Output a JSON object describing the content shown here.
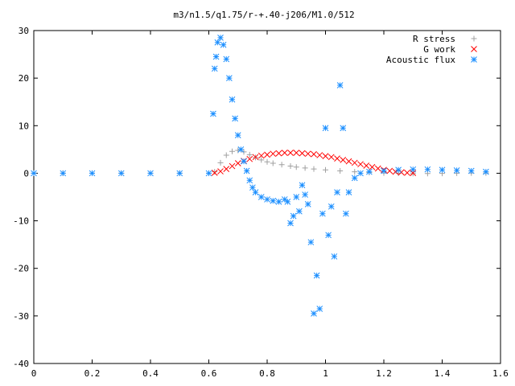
{
  "chart_data": {
    "type": "scatter",
    "title": "m3/n1.5/q1.75/r-+.40-j206/M1.0/512",
    "xlabel": "",
    "ylabel": "",
    "xlim": [
      0,
      1.6
    ],
    "ylim": [
      -40,
      30
    ],
    "xticks": [
      0,
      0.2,
      0.4,
      0.6,
      0.8,
      1,
      1.2,
      1.4,
      1.6
    ],
    "xtick_labels": [
      "0",
      "0.2",
      "0.4",
      "0.6",
      "0.8",
      "1",
      "1.2",
      "1.4",
      "1.6"
    ],
    "yticks": [
      -40,
      -30,
      -20,
      -10,
      0,
      10,
      20,
      30
    ],
    "ytick_labels": [
      "-40",
      "-30",
      "-20",
      "-10",
      "0",
      "10",
      "20",
      "30"
    ],
    "grid": false,
    "legend_position": "top-right",
    "series": [
      {
        "name": "R stress",
        "color": "#a0a0a0",
        "marker": "plus",
        "x": [
          0.0,
          0.1,
          0.2,
          0.3,
          0.4,
          0.5,
          0.6,
          0.62,
          0.64,
          0.66,
          0.68,
          0.7,
          0.72,
          0.74,
          0.76,
          0.78,
          0.8,
          0.82,
          0.85,
          0.88,
          0.9,
          0.93,
          0.96,
          1.0,
          1.05,
          1.1,
          1.15,
          1.2,
          1.25,
          1.3,
          1.35,
          1.4,
          1.45,
          1.5,
          1.55
        ],
        "y": [
          0,
          0,
          0,
          0,
          0,
          0,
          0,
          0.3,
          2.2,
          3.8,
          4.6,
          4.8,
          4.5,
          3.9,
          3.3,
          2.8,
          2.4,
          2.1,
          1.8,
          1.5,
          1.3,
          1.1,
          0.9,
          0.7,
          0.5,
          0.3,
          0.15,
          0.05,
          0.0,
          -0.05,
          -0.05,
          -0.03,
          0.0,
          0.05,
          0.05
        ]
      },
      {
        "name": "G work",
        "color": "#ff0000",
        "marker": "cross",
        "x": [
          0.62,
          0.64,
          0.66,
          0.68,
          0.7,
          0.72,
          0.74,
          0.76,
          0.78,
          0.8,
          0.82,
          0.84,
          0.86,
          0.88,
          0.9,
          0.92,
          0.94,
          0.96,
          0.98,
          1.0,
          1.02,
          1.04,
          1.06,
          1.08,
          1.1,
          1.12,
          1.14,
          1.16,
          1.18,
          1.2,
          1.22,
          1.24,
          1.26,
          1.28,
          1.3
        ],
        "y": [
          0.1,
          0.4,
          0.9,
          1.5,
          2.1,
          2.6,
          3.0,
          3.4,
          3.7,
          3.9,
          4.1,
          4.2,
          4.3,
          4.3,
          4.3,
          4.2,
          4.1,
          4.0,
          3.8,
          3.6,
          3.4,
          3.1,
          2.8,
          2.5,
          2.2,
          1.9,
          1.6,
          1.3,
          1.0,
          0.7,
          0.5,
          0.3,
          0.2,
          0.1,
          0.05
        ]
      },
      {
        "name": "Acoustic flux",
        "color": "#1e90ff",
        "marker": "star",
        "x": [
          0.0,
          0.1,
          0.2,
          0.3,
          0.4,
          0.5,
          0.6,
          0.615,
          0.62,
          0.625,
          0.63,
          0.64,
          0.65,
          0.66,
          0.67,
          0.68,
          0.69,
          0.7,
          0.71,
          0.72,
          0.73,
          0.74,
          0.75,
          0.76,
          0.78,
          0.8,
          0.82,
          0.84,
          0.86,
          0.87,
          0.88,
          0.89,
          0.9,
          0.91,
          0.92,
          0.93,
          0.94,
          0.95,
          0.96,
          0.97,
          0.98,
          0.99,
          1.0,
          1.01,
          1.02,
          1.03,
          1.04,
          1.05,
          1.06,
          1.07,
          1.08,
          1.1,
          1.12,
          1.15,
          1.2,
          1.25,
          1.3,
          1.35,
          1.4,
          1.45,
          1.5,
          1.55
        ],
        "y": [
          0,
          0,
          0,
          0,
          0,
          0,
          0,
          12.5,
          22.0,
          24.5,
          27.5,
          28.5,
          27.0,
          24.0,
          20.0,
          15.5,
          11.5,
          8.0,
          5.0,
          2.5,
          0.5,
          -1.5,
          -3.0,
          -4.0,
          -5.0,
          -5.5,
          -5.8,
          -6.0,
          -5.5,
          -6.0,
          -10.5,
          -9.0,
          -5.0,
          -8.0,
          -2.5,
          -4.5,
          -6.5,
          -14.5,
          -29.5,
          -21.5,
          -28.5,
          -8.5,
          9.5,
          -13.0,
          -7.0,
          -17.5,
          -4.0,
          18.5,
          9.5,
          -8.5,
          -4.0,
          -1.0,
          0.0,
          0.3,
          0.5,
          0.7,
          0.8,
          0.8,
          0.7,
          0.6,
          0.5,
          0.3
        ]
      }
    ]
  }
}
